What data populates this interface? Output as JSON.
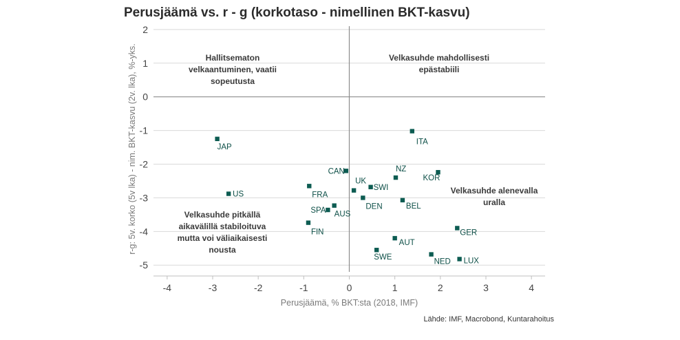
{
  "title": "Perusjäämä vs. r - g (korkotaso - nimellinen BKT-kasvu)",
  "source": "Lähde: IMF, Macrobond, Kuntarahoitus",
  "colors": {
    "marker": "#0d5c52",
    "label": "#0d4f47",
    "grid": "#d9d9d9",
    "zero_line": "#8c8c8c"
  },
  "chart_data": {
    "type": "scatter",
    "xlabel": "Perusjäämä, % BKT:sta (2018, IMF)",
    "ylabel": "r-g: 5v. korko (5v lka) - nim. BKT-kasvu (2v. lka), %-yks.",
    "xlim": [
      -4.3,
      4.3
    ],
    "ylim": [
      -5.2,
      2.1
    ],
    "xticks": [
      "-4",
      "-3",
      "-2",
      "-1",
      "0",
      "1",
      "2",
      "3",
      "4"
    ],
    "yticks": [
      "2",
      "1",
      "0",
      "-1",
      "-2",
      "-3",
      "-4",
      "-5"
    ],
    "grid": "horizontal",
    "points": [
      {
        "label": "JAP",
        "x": -2.9,
        "y": -1.25
      },
      {
        "label": "US",
        "x": -2.65,
        "y": -2.88
      },
      {
        "label": "FRA",
        "x": -0.88,
        "y": -2.65
      },
      {
        "label": "FIN",
        "x": -0.9,
        "y": -3.74
      },
      {
        "label": "CAN",
        "x": -0.07,
        "y": -2.2
      },
      {
        "label": "UK",
        "x": 0.1,
        "y": -2.78
      },
      {
        "label": "SPA",
        "x": -0.47,
        "y": -3.36
      },
      {
        "label": "AUS",
        "x": -0.33,
        "y": -3.23
      },
      {
        "label": "DEN",
        "x": 0.3,
        "y": -3.0
      },
      {
        "label": "SWI",
        "x": 0.47,
        "y": -2.68
      },
      {
        "label": "NZ",
        "x": 1.02,
        "y": -2.4
      },
      {
        "label": "BEL",
        "x": 1.17,
        "y": -3.07
      },
      {
        "label": "ITA",
        "x": 1.38,
        "y": -1.02
      },
      {
        "label": "KOR",
        "x": 1.95,
        "y": -2.24
      },
      {
        "label": "AUT",
        "x": 1.0,
        "y": -4.2
      },
      {
        "label": "SWE",
        "x": 0.6,
        "y": -4.55
      },
      {
        "label": "NED",
        "x": 1.8,
        "y": -4.68
      },
      {
        "label": "LUX",
        "x": 2.42,
        "y": -4.82
      },
      {
        "label": "GER",
        "x": 2.37,
        "y": -3.9
      }
    ],
    "annotations": [
      {
        "lines": [
          "Hallitsematon",
          "velkaantuminen, vaatii",
          "sopeutusta"
        ]
      },
      {
        "lines": [
          "Velkasuhde mahdollisesti",
          "epästabiili"
        ]
      },
      {
        "lines": [
          "Velkasuhde alenevalla",
          "uralla"
        ]
      },
      {
        "lines": [
          "Velkasuhde pitkällä",
          "aikavälillä stabiloituva",
          "mutta voi väliaikaisesti",
          "nousta"
        ]
      }
    ]
  }
}
